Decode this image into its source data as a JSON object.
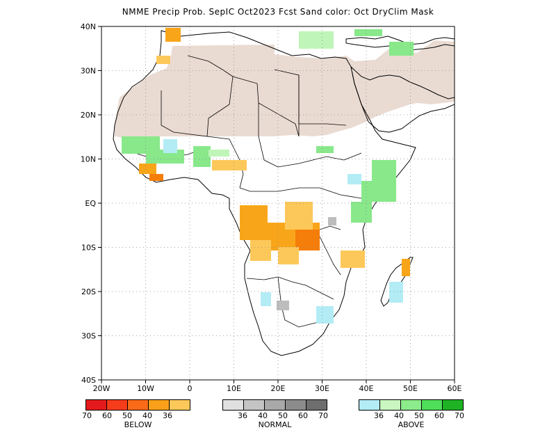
{
  "title": "NMME Precip Prob. SepIC  Oct2023 Fcst  Sand color: Oct DryClim Mask",
  "map": {
    "lat_labels": [
      "40N",
      "30N",
      "20N",
      "10N",
      "EQ",
      "10S",
      "20S",
      "30S",
      "40S"
    ],
    "lon_labels": [
      "20W",
      "10W",
      "0",
      "10E",
      "20E",
      "30E",
      "40E",
      "50E",
      "60E"
    ],
    "lat_range": [
      -40,
      40
    ],
    "lon_range": [
      -20,
      60
    ],
    "grid": "dotted",
    "colors": {
      "dry_mask": "#eadbd2",
      "below_36": "#fdc85a",
      "below_40": "#f9a51a",
      "below_50": "#f57d0a",
      "normal_36": "#bdbdbd",
      "above_36": "#b3ecf5",
      "above_40": "#bff5b8",
      "above_50": "#88e88a",
      "above_60": "#4ede58",
      "coast": "#000000"
    }
  },
  "legends": {
    "below": {
      "colors": [
        "#e41a1c",
        "#f53c1b",
        "#fa6a18",
        "#f9a01b",
        "#fdc85a"
      ],
      "ticks": [
        "70",
        "60",
        "50",
        "40",
        "36"
      ],
      "caption": "BELOW"
    },
    "normal": {
      "colors": [
        "#e0e0e0",
        "#c4c4c4",
        "#a9a9a9",
        "#8c8c8c",
        "#6e6e6e"
      ],
      "ticks": [
        "36",
        "40",
        "50",
        "60",
        "70"
      ],
      "caption": "NORMAL"
    },
    "above": {
      "colors": [
        "#b3ecf5",
        "#c9f7c1",
        "#8ceb8a",
        "#4fde5a",
        "#1eb224"
      ],
      "ticks": [
        "36",
        "40",
        "50",
        "60",
        "70"
      ],
      "caption": "ABOVE"
    }
  }
}
